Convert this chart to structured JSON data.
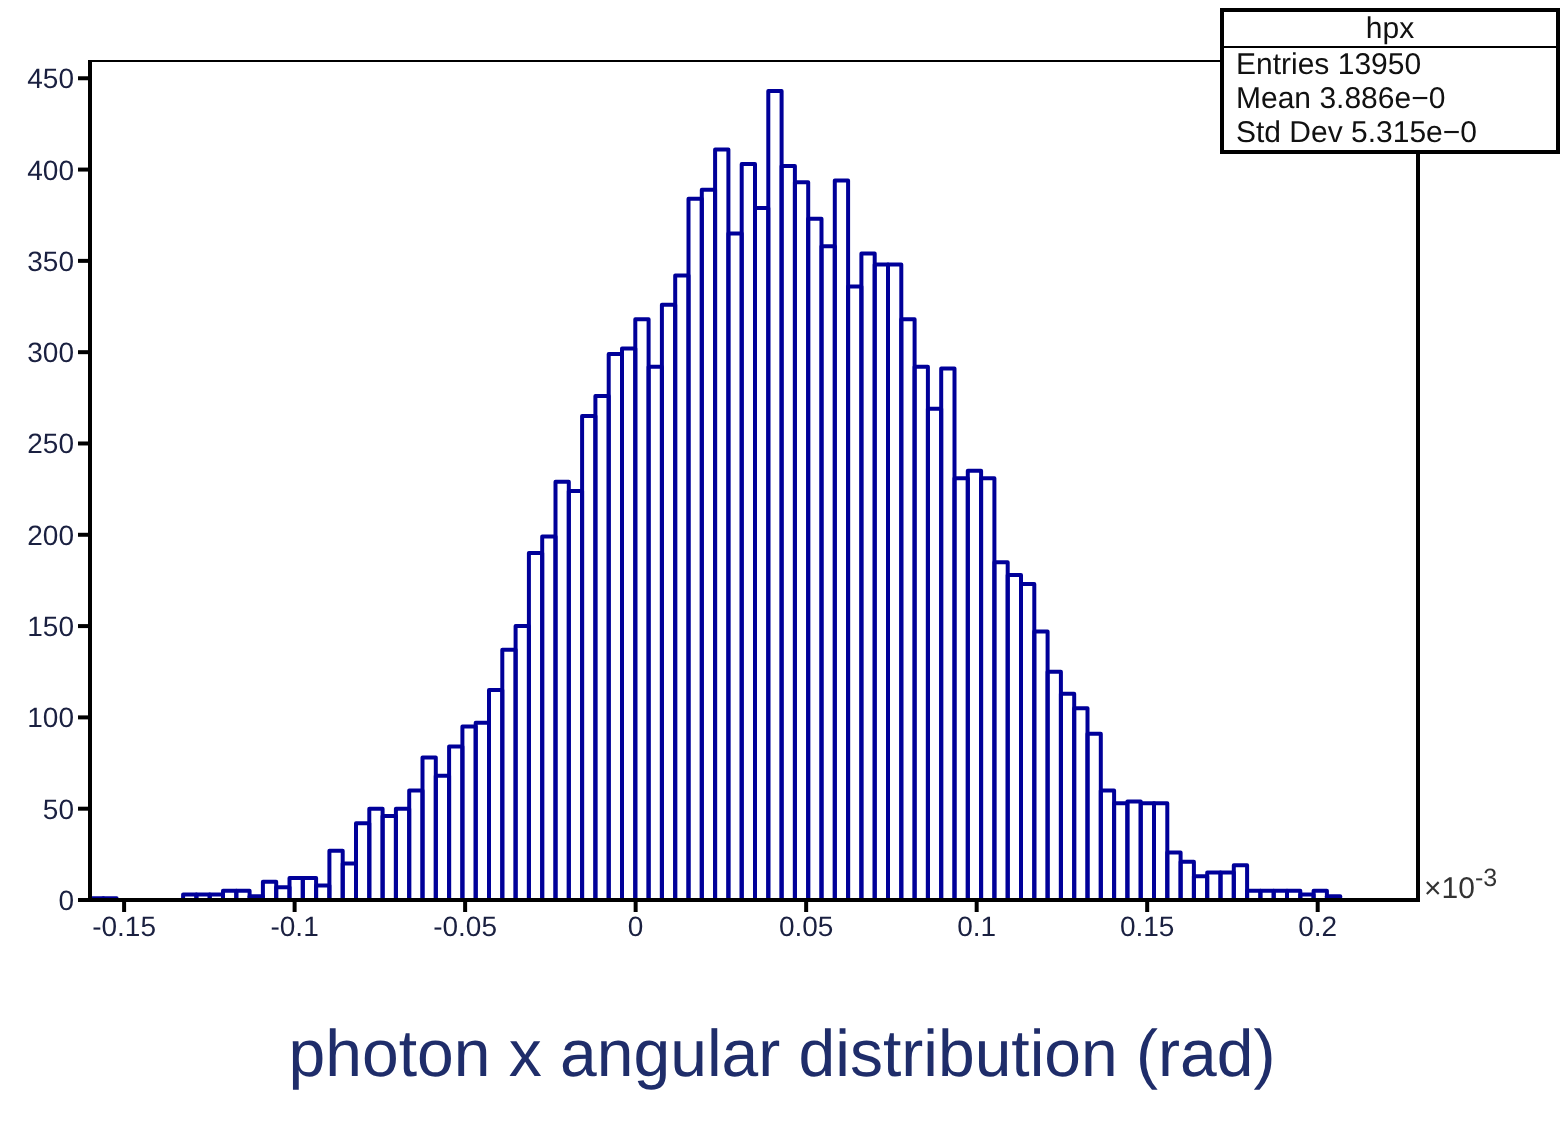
{
  "chart_data": {
    "type": "histogram",
    "xlabel": "photon x angular distribution (rad)",
    "bins": [
      -0.16,
      -0.1561,
      -0.1522,
      -0.1483,
      -0.1444,
      -0.1405,
      -0.1366,
      -0.1327,
      -0.1288,
      -0.1249,
      -0.121,
      -0.1171,
      -0.1132,
      -0.1093,
      -0.1054,
      -0.1015,
      -0.0976,
      -0.0937,
      -0.0898,
      -0.0859,
      -0.082,
      -0.0781,
      -0.0742,
      -0.0703,
      -0.0664,
      -0.0625,
      -0.0586,
      -0.0547,
      -0.0508,
      -0.0469,
      -0.043,
      -0.0391,
      -0.0352,
      -0.0313,
      -0.0274,
      -0.0235,
      -0.0196,
      -0.0157,
      -0.0118,
      -0.0079,
      -0.004,
      -0.0001,
      0.0038,
      0.0077,
      0.0116,
      0.0155,
      0.0194,
      0.0233,
      0.0272,
      0.0311,
      0.035,
      0.0389,
      0.0428,
      0.0467,
      0.0506,
      0.0545,
      0.0584,
      0.0623,
      0.0662,
      0.0701,
      0.074,
      0.0779,
      0.0818,
      0.0857,
      0.0896,
      0.0935,
      0.0974,
      0.1013,
      0.1052,
      0.1091,
      0.113,
      0.1169,
      0.1208,
      0.1247,
      0.1286,
      0.1325,
      0.1364,
      0.1403,
      0.1442,
      0.1481,
      0.152,
      0.1559,
      0.1598,
      0.1637,
      0.1676,
      0.1715,
      0.1754,
      0.1793,
      0.1832,
      0.1871,
      0.191,
      0.1949,
      0.1988,
      0.2027,
      0.2066,
      0.2105,
      0.2144,
      0.2183,
      0.2222,
      0.2261,
      0.23
    ],
    "values": [
      1,
      1,
      0,
      0,
      0,
      0,
      0,
      3,
      3,
      3,
      5,
      5,
      2,
      10,
      7,
      12,
      12,
      8,
      27,
      20,
      42,
      50,
      46,
      50,
      60,
      78,
      68,
      84,
      95,
      97,
      115,
      137,
      150,
      190,
      199,
      229,
      224,
      265,
      276,
      299,
      302,
      318,
      292,
      326,
      342,
      384,
      389,
      411,
      365,
      403,
      379,
      443,
      402,
      393,
      373,
      358,
      394,
      336,
      354,
      348,
      348,
      318,
      292,
      269,
      291,
      231,
      235,
      231,
      185,
      178,
      173,
      147,
      125,
      113,
      105,
      91,
      60,
      53,
      54,
      53,
      53,
      26,
      21,
      13,
      15,
      15,
      19,
      5,
      5,
      5,
      5,
      3,
      5,
      2,
      0,
      0,
      0,
      0,
      0,
      0
    ],
    "color": "#000099",
    "xlim": [
      -0.16,
      0.23
    ],
    "xticks": [
      -0.15,
      -0.1,
      -0.05,
      0,
      0.05,
      0.1,
      0.15,
      0.2
    ],
    "ylim": [
      0,
      460
    ],
    "yticks": [
      0,
      50,
      100,
      150,
      200,
      250,
      300,
      350,
      400,
      450
    ],
    "annotations": [
      "hpx",
      "Entries 13950",
      "Mean 3.886e−0",
      "Std Dev 5.315e−0",
      "×10$^{-3}$"
    ]
  }
}
